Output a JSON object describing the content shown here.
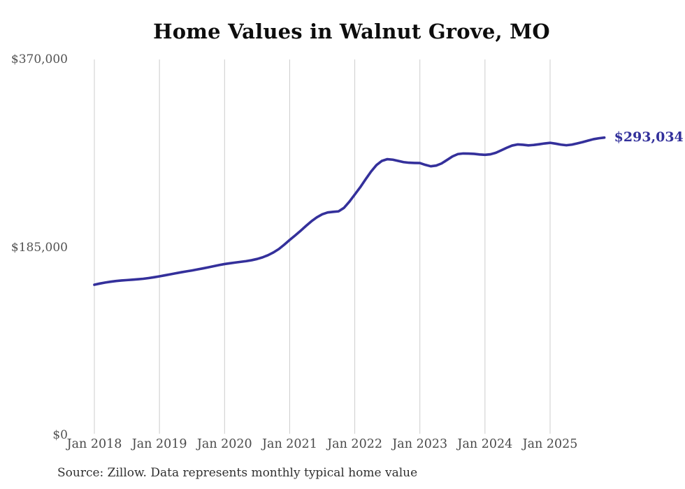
{
  "chart": {
    "title": "Home Values in Walnut Grove, MO",
    "source": "Source: Zillow. Data represents monthly typical home value"
  },
  "chart_data": {
    "type": "line",
    "title": "Home Values in Walnut Grove, MO",
    "xlabel": "",
    "ylabel": "",
    "ylim": [
      0,
      370000
    ],
    "grid": "vertical-yearly",
    "legend_position": "none",
    "line_color": "#34309b",
    "gridline_color": "#cccccc",
    "end_label": "$293,034",
    "latest_value": 293034,
    "y_ticks": [
      {
        "label": "$370,000",
        "value": 370000
      },
      {
        "label": "$185,000",
        "value": 185000
      },
      {
        "label": "$0",
        "value": 0
      }
    ],
    "x_ticks": [
      "Jan 2018",
      "Jan 2019",
      "Jan 2020",
      "Jan 2021",
      "Jan 2022",
      "Jan 2023",
      "Jan 2024",
      "Jan 2025"
    ],
    "months": [
      "2018-01",
      "2018-02",
      "2018-03",
      "2018-04",
      "2018-05",
      "2018-06",
      "2018-07",
      "2018-08",
      "2018-09",
      "2018-10",
      "2018-11",
      "2018-12",
      "2019-01",
      "2019-02",
      "2019-03",
      "2019-04",
      "2019-05",
      "2019-06",
      "2019-07",
      "2019-08",
      "2019-09",
      "2019-10",
      "2019-11",
      "2019-12",
      "2020-01",
      "2020-02",
      "2020-03",
      "2020-04",
      "2020-05",
      "2020-06",
      "2020-07",
      "2020-08",
      "2020-09",
      "2020-10",
      "2020-11",
      "2020-12",
      "2021-01",
      "2021-02",
      "2021-03",
      "2021-04",
      "2021-05",
      "2021-06",
      "2021-07",
      "2021-08",
      "2021-09",
      "2021-10",
      "2021-11",
      "2021-12",
      "2022-01",
      "2022-02",
      "2022-03",
      "2022-04",
      "2022-05",
      "2022-06",
      "2022-07",
      "2022-08",
      "2022-09",
      "2022-10",
      "2022-11",
      "2022-12",
      "2023-01",
      "2023-02",
      "2023-03",
      "2023-04",
      "2023-05",
      "2023-06",
      "2023-07",
      "2023-08",
      "2023-09",
      "2023-10",
      "2023-11",
      "2023-12",
      "2024-01",
      "2024-02",
      "2024-03",
      "2024-04",
      "2024-05",
      "2024-06",
      "2024-07",
      "2024-08",
      "2024-09",
      "2024-10",
      "2024-11",
      "2024-12",
      "2025-01",
      "2025-02",
      "2025-03",
      "2025-04",
      "2025-05",
      "2025-06",
      "2025-07",
      "2025-08",
      "2025-09",
      "2025-10",
      "2025-11"
    ],
    "values": [
      148100,
      149300,
      150300,
      151100,
      151800,
      152300,
      152700,
      153100,
      153500,
      154000,
      154700,
      155500,
      156400,
      157400,
      158400,
      159400,
      160400,
      161300,
      162200,
      163200,
      164200,
      165300,
      166400,
      167500,
      168500,
      169300,
      170000,
      170700,
      171400,
      172300,
      173500,
      175100,
      177200,
      179900,
      183300,
      187600,
      192200,
      196600,
      201200,
      206000,
      210600,
      214500,
      217500,
      219300,
      219900,
      220400,
      223800,
      229900,
      237000,
      244100,
      252000,
      259600,
      266000,
      270100,
      271800,
      271300,
      270100,
      268900,
      268300,
      268100,
      268000,
      266200,
      264800,
      265500,
      267600,
      271000,
      274500,
      276800,
      277400,
      277300,
      277000,
      276400,
      276100,
      276600,
      278100,
      280500,
      283000,
      285200,
      286300,
      286000,
      285400,
      285800,
      286500,
      287300,
      287900,
      287100,
      286100,
      285500,
      286100,
      287300,
      288600,
      290100,
      291500,
      292400,
      293034
    ]
  }
}
